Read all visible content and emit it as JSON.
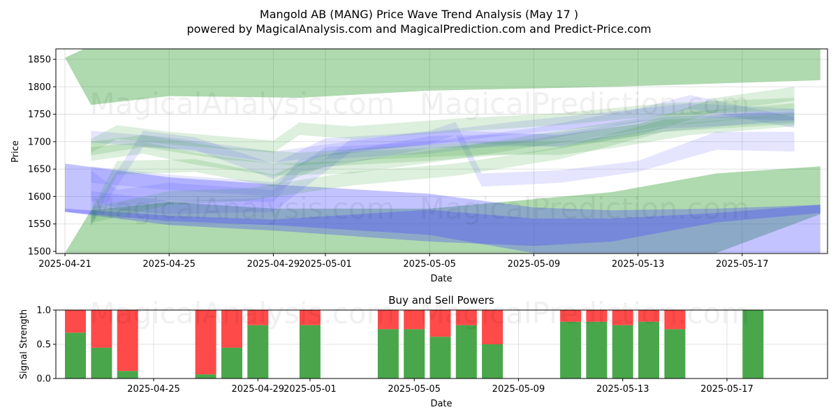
{
  "header": {
    "title": "Mangold AB (MANG) Price Wave Trend Analysis (May 17 )",
    "subtitle": "powered by MagicalAnalysis.com and MagicalPrediction.com and Predict-Price.com"
  },
  "watermarks": [
    "MagicalAnalysis.com",
    "MagicalPrediction.com"
  ],
  "colors": {
    "green": "#2e9a2e",
    "blue": "#4444ff",
    "buy": "#4aa64a",
    "sell": "#ff4a4a"
  },
  "chart_data": [
    {
      "type": "area",
      "title": "",
      "xlabel": "Date",
      "ylabel": "Price",
      "x_ticks": [
        "2025-04-21",
        "2025-04-25",
        "2025-04-29",
        "2025-05-01",
        "2025-05-05",
        "2025-05-09",
        "2025-05-13",
        "2025-05-17"
      ],
      "y_ticks": [
        1500,
        1550,
        1600,
        1650,
        1700,
        1750,
        1800,
        1850
      ],
      "xlim": [
        "2025-04-21",
        "2025-05-20"
      ],
      "ylim": [
        1497,
        1870
      ],
      "grid": true,
      "bands": [
        {
          "color": "green",
          "opacity": 0.38,
          "x": [
            "2025-04-21",
            "2025-04-22",
            "2025-04-25",
            "2025-04-30",
            "2025-05-05",
            "2025-05-12",
            "2025-05-20"
          ],
          "upper": [
            1853,
            1875,
            1880,
            1878,
            1880,
            1880,
            1870
          ],
          "lower": [
            1853,
            1767,
            1783,
            1780,
            1793,
            1800,
            1812
          ]
        },
        {
          "color": "green",
          "opacity": 0.38,
          "x": [
            "2025-04-21",
            "2025-04-22",
            "2025-04-25",
            "2025-04-29",
            "2025-05-05",
            "2025-05-12",
            "2025-05-16",
            "2025-05-20"
          ],
          "upper": [
            1497,
            1575,
            1590,
            1578,
            1578,
            1608,
            1642,
            1655
          ],
          "lower": [
            1497,
            1497,
            1497,
            1497,
            1497,
            1497,
            1497,
            1568
          ]
        },
        {
          "color": "blue",
          "opacity": 0.32,
          "x": [
            "2025-04-21",
            "2025-04-25",
            "2025-04-29",
            "2025-05-05",
            "2025-05-09",
            "2025-05-12",
            "2025-05-16",
            "2025-05-20"
          ],
          "upper": [
            1660,
            1635,
            1622,
            1605,
            1580,
            1575,
            1578,
            1585
          ],
          "lower": [
            1572,
            1555,
            1548,
            1530,
            1497,
            1497,
            1497,
            1497
          ]
        },
        {
          "color": "blue",
          "opacity": 0.32,
          "x": [
            "2025-04-21",
            "2025-04-25",
            "2025-04-29",
            "2025-05-05",
            "2025-05-09",
            "2025-05-12",
            "2025-05-16",
            "2025-05-20"
          ],
          "upper": [
            1578,
            1565,
            1558,
            1576,
            1560,
            1560,
            1570,
            1585
          ],
          "lower": [
            1572,
            1548,
            1538,
            1518,
            1510,
            1518,
            1553,
            1570
          ]
        },
        {
          "color": "blue",
          "opacity": 0.14,
          "x": [
            "2025-04-22",
            "2025-04-25",
            "2025-04-29",
            "2025-05-05",
            "2025-05-06",
            "2025-05-07",
            "2025-05-10",
            "2025-05-13",
            "2025-05-16",
            "2025-05-19"
          ],
          "upper": [
            1720,
            1708,
            1682,
            1720,
            1736,
            1642,
            1648,
            1665,
            1718,
            1718
          ],
          "lower": [
            1698,
            1688,
            1662,
            1696,
            1712,
            1618,
            1625,
            1645,
            1685,
            1682
          ]
        },
        {
          "color": "blue",
          "opacity": 0.14,
          "x": [
            "2025-04-22",
            "2025-04-23",
            "2025-04-25",
            "2025-04-29",
            "2025-04-30",
            "2025-05-05",
            "2025-05-10",
            "2025-05-14",
            "2025-05-19"
          ],
          "upper": [
            1648,
            1612,
            1625,
            1612,
            1668,
            1710,
            1716,
            1745,
            1755
          ],
          "lower": [
            1592,
            1580,
            1593,
            1590,
            1644,
            1688,
            1692,
            1724,
            1735
          ]
        },
        {
          "color": "blue",
          "opacity": 0.14,
          "x": [
            "2025-04-22",
            "2025-04-24",
            "2025-04-26",
            "2025-04-29",
            "2025-05-01",
            "2025-05-05",
            "2025-05-08",
            "2025-05-12",
            "2025-05-15",
            "2025-05-19"
          ],
          "upper": [
            1572,
            1720,
            1708,
            1660,
            1706,
            1718,
            1735,
            1755,
            1770,
            1760
          ],
          "lower": [
            1548,
            1690,
            1685,
            1632,
            1680,
            1695,
            1712,
            1730,
            1745,
            1738
          ]
        },
        {
          "color": "blue",
          "opacity": 0.14,
          "x": [
            "2025-04-22",
            "2025-04-25",
            "2025-04-29",
            "2025-05-01",
            "2025-05-05",
            "2025-05-09",
            "2025-05-13",
            "2025-05-15",
            "2025-05-19"
          ],
          "upper": [
            1655,
            1640,
            1626,
            1690,
            1700,
            1725,
            1760,
            1785,
            1745
          ],
          "lower": [
            1625,
            1612,
            1600,
            1668,
            1678,
            1700,
            1735,
            1760,
            1725
          ]
        },
        {
          "color": "blue",
          "opacity": 0.14,
          "x": [
            "2025-04-22",
            "2025-04-25",
            "2025-04-29",
            "2025-05-02",
            "2025-05-06",
            "2025-05-10",
            "2025-05-14",
            "2025-05-19"
          ],
          "upper": [
            1610,
            1592,
            1598,
            1705,
            1720,
            1712,
            1740,
            1760
          ],
          "lower": [
            1580,
            1568,
            1572,
            1682,
            1698,
            1690,
            1718,
            1740
          ]
        },
        {
          "color": "green",
          "opacity": 0.16,
          "x": [
            "2025-04-22",
            "2025-04-23",
            "2025-04-25",
            "2025-04-29",
            "2025-04-30",
            "2025-05-02",
            "2025-05-06",
            "2025-05-10",
            "2025-05-14",
            "2025-05-19"
          ],
          "upper": [
            1705,
            1730,
            1718,
            1702,
            1735,
            1728,
            1742,
            1752,
            1770,
            1780
          ],
          "lower": [
            1680,
            1705,
            1695,
            1680,
            1712,
            1705,
            1718,
            1730,
            1748,
            1758
          ]
        },
        {
          "color": "green",
          "opacity": 0.16,
          "x": [
            "2025-04-22",
            "2025-04-23",
            "2025-04-26",
            "2025-04-29",
            "2025-05-01",
            "2025-05-05",
            "2025-05-09",
            "2025-05-13",
            "2025-05-16",
            "2025-05-19"
          ],
          "upper": [
            1575,
            1665,
            1668,
            1640,
            1680,
            1688,
            1705,
            1732,
            1780,
            1800
          ],
          "lower": [
            1545,
            1640,
            1645,
            1618,
            1655,
            1665,
            1680,
            1710,
            1755,
            1775
          ]
        },
        {
          "color": "green",
          "opacity": 0.16,
          "x": [
            "2025-04-22",
            "2025-04-24",
            "2025-04-26",
            "2025-04-29",
            "2025-05-02",
            "2025-05-06",
            "2025-05-10",
            "2025-05-14",
            "2025-05-19"
          ],
          "upper": [
            1690,
            1700,
            1680,
            1660,
            1665,
            1690,
            1720,
            1750,
            1770
          ],
          "lower": [
            1665,
            1678,
            1658,
            1638,
            1642,
            1668,
            1698,
            1728,
            1750
          ]
        },
        {
          "color": "green",
          "opacity": 0.16,
          "x": [
            "2025-04-22",
            "2025-04-25",
            "2025-04-28",
            "2025-05-02",
            "2025-05-06",
            "2025-05-10",
            "2025-05-14",
            "2025-05-19"
          ],
          "upper": [
            1580,
            1610,
            1615,
            1645,
            1660,
            1690,
            1740,
            1752
          ],
          "lower": [
            1552,
            1585,
            1592,
            1620,
            1638,
            1668,
            1718,
            1732
          ]
        },
        {
          "color": "green",
          "opacity": 0.16,
          "x": [
            "2025-04-22",
            "2025-04-24",
            "2025-04-27",
            "2025-04-30",
            "2025-05-03",
            "2025-05-07",
            "2025-05-10",
            "2025-05-12",
            "2025-05-15",
            "2025-05-19"
          ],
          "upper": [
            1700,
            1712,
            1690,
            1680,
            1690,
            1700,
            1700,
            1710,
            1735,
            1750
          ],
          "lower": [
            1675,
            1690,
            1668,
            1656,
            1668,
            1676,
            1676,
            1688,
            1712,
            1728
          ]
        }
      ]
    },
    {
      "type": "bar",
      "title": "Buy and Sell Powers",
      "xlabel": "Date",
      "ylabel": "Signal Strength",
      "x_ticks": [
        "2025-04-25",
        "2025-04-29",
        "2025-05-01",
        "2025-05-05",
        "2025-05-09",
        "2025-05-13",
        "2025-05-17"
      ],
      "y_ticks": [
        "0.0",
        "0.5",
        "1.0"
      ],
      "ylim": [
        0,
        1
      ],
      "grid": true,
      "series": [
        {
          "name": "",
          "color": "buy"
        },
        {
          "name": "",
          "color": "sell"
        }
      ],
      "bars": [
        {
          "date": "2025-04-22",
          "buy": 0.67
        },
        {
          "date": "2025-04-23",
          "buy": 0.45
        },
        {
          "date": "2025-04-24",
          "buy": 0.11
        },
        {
          "date": "2025-04-27",
          "buy": 0.06
        },
        {
          "date": "2025-04-28",
          "buy": 0.45
        },
        {
          "date": "2025-04-29",
          "buy": 0.78
        },
        {
          "date": "2025-05-01",
          "buy": 0.78
        },
        {
          "date": "2025-05-04",
          "buy": 0.72
        },
        {
          "date": "2025-05-05",
          "buy": 0.72
        },
        {
          "date": "2025-05-06",
          "buy": 0.61
        },
        {
          "date": "2025-05-07",
          "buy": 0.78
        },
        {
          "date": "2025-05-08",
          "buy": 0.5
        },
        {
          "date": "2025-05-11",
          "buy": 0.83
        },
        {
          "date": "2025-05-12",
          "buy": 0.83
        },
        {
          "date": "2025-05-13",
          "buy": 0.78
        },
        {
          "date": "2025-05-14",
          "buy": 0.83
        },
        {
          "date": "2025-05-15",
          "buy": 0.72
        },
        {
          "date": "2025-05-18",
          "buy": 1.0
        }
      ]
    }
  ]
}
